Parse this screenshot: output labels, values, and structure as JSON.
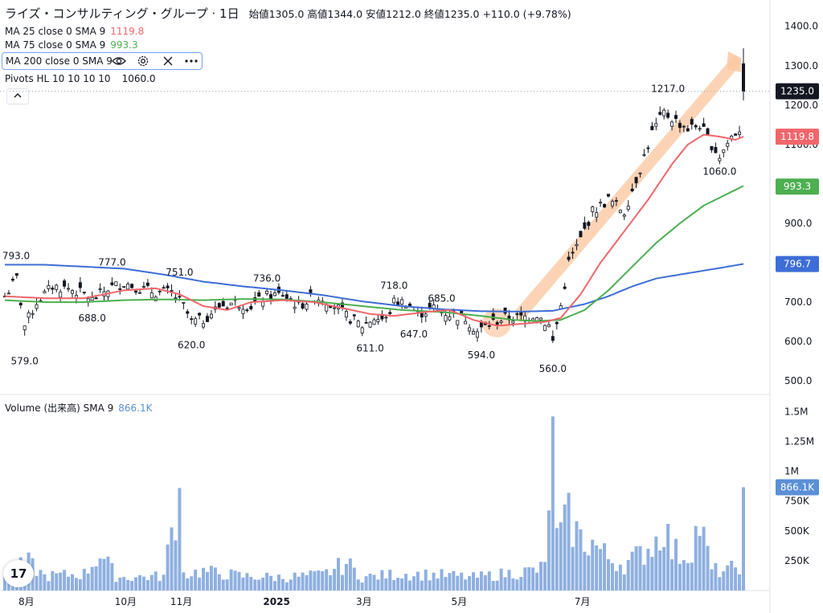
{
  "header": {
    "name": "ライズ・コンサルティング・グループ · 1日",
    "ohlc": "始値1305.0 高値1344.0 安値1212.0 終値1235.0 +110.0 (+9.78%)"
  },
  "legend": {
    "ma25": {
      "label": "MA 25 close 0 SMA 9",
      "value": "1119.8",
      "color": "#f0666b"
    },
    "ma75": {
      "label": "MA 75 close 0 SMA 9",
      "value": "993.3",
      "color": "#4caf50"
    },
    "ma200": {
      "label": "MA 200 close 0 SMA 9",
      "value": "",
      "color": "#3d6dd6"
    },
    "pivots": {
      "label": "Pivots HL 10 10 10 10",
      "value": "1060.0"
    },
    "volume": {
      "label": "Volume (出来高) SMA 9",
      "value": "866.1K",
      "color": "#5b8fd6"
    }
  },
  "icons": [
    "eye-icon",
    "gear-icon",
    "close-icon",
    "more-icon",
    "chevron-up-icon"
  ],
  "logo_text": "17",
  "chart_data": {
    "type": "candlestick",
    "price_axis": {
      "ticks": [
        "1400.0",
        "1300.0",
        "1200.0",
        "1100.0",
        "1000.0",
        "900.0",
        "800.0",
        "700.0",
        "600.0",
        "500.0"
      ],
      "ylim": [
        480,
        1430
      ]
    },
    "volume_axis": {
      "ticks": [
        "1.5M",
        "1.25M",
        "1M",
        "750K",
        "500K",
        "250K"
      ],
      "ylim": [
        0,
        1550000
      ]
    },
    "x_ticks": [
      "8月",
      "10月",
      "11月",
      "2025",
      "3月",
      "5月",
      "7月"
    ],
    "price_badges": [
      {
        "label": "1235.0",
        "value": 1235,
        "color": "#131722"
      },
      {
        "label": "1119.8",
        "value": 1119.8,
        "color": "#f0666b"
      },
      {
        "label": "993.3",
        "value": 993.3,
        "color": "#4caf50"
      },
      {
        "label": "796.7",
        "value": 796.7,
        "color": "#3d6dd6"
      },
      {
        "label": "866.1K",
        "value": 866100,
        "color": "#5b8fd6",
        "pane": "volume"
      }
    ],
    "pivot_labels": [
      {
        "text": "793.0",
        "i": 0,
        "price": 793,
        "pos": "above"
      },
      {
        "text": "579.0",
        "i": 5,
        "price": 579,
        "pos": "below"
      },
      {
        "text": "777.0",
        "i": 27,
        "price": 777,
        "pos": "above"
      },
      {
        "text": "688.0",
        "i": 22,
        "price": 688,
        "pos": "below"
      },
      {
        "text": "751.0",
        "i": 44,
        "price": 751,
        "pos": "above"
      },
      {
        "text": "620.0",
        "i": 47,
        "price": 620,
        "pos": "below"
      },
      {
        "text": "736.0",
        "i": 66,
        "price": 736,
        "pos": "above"
      },
      {
        "text": "611.0",
        "i": 92,
        "price": 611,
        "pos": "below"
      },
      {
        "text": "718.0",
        "i": 98,
        "price": 718,
        "pos": "above"
      },
      {
        "text": "647.0",
        "i": 103,
        "price": 647,
        "pos": "below"
      },
      {
        "text": "685.0",
        "i": 110,
        "price": 685,
        "pos": "above"
      },
      {
        "text": "594.0",
        "i": 120,
        "price": 594,
        "pos": "below"
      },
      {
        "text": "560.0",
        "i": 138,
        "price": 560,
        "pos": "below"
      },
      {
        "text": "1217.0",
        "i": 167,
        "price": 1217,
        "pos": "above"
      },
      {
        "text": "1060.0",
        "i": 180,
        "price": 1060,
        "pos": "below"
      }
    ],
    "anchors": {
      "close": [
        [
          0,
          715
        ],
        [
          3,
          760
        ],
        [
          5,
          640
        ],
        [
          8,
          700
        ],
        [
          12,
          740
        ],
        [
          16,
          735
        ],
        [
          20,
          720
        ],
        [
          22,
          705
        ],
        [
          26,
          735
        ],
        [
          30,
          750
        ],
        [
          34,
          735
        ],
        [
          38,
          725
        ],
        [
          42,
          725
        ],
        [
          45,
          690
        ],
        [
          47,
          650
        ],
        [
          50,
          655
        ],
        [
          54,
          690
        ],
        [
          58,
          700
        ],
        [
          62,
          690
        ],
        [
          66,
          715
        ],
        [
          70,
          720
        ],
        [
          74,
          690
        ],
        [
          78,
          715
        ],
        [
          82,
          700
        ],
        [
          86,
          665
        ],
        [
          90,
          640
        ],
        [
          93,
          660
        ],
        [
          96,
          655
        ],
        [
          98,
          700
        ],
        [
          101,
          700
        ],
        [
          104,
          670
        ],
        [
          108,
          685
        ],
        [
          112,
          670
        ],
        [
          116,
          660
        ],
        [
          119,
          625
        ],
        [
          122,
          645
        ],
        [
          126,
          660
        ],
        [
          130,
          660
        ],
        [
          134,
          670
        ],
        [
          137,
          640
        ],
        [
          138,
          600
        ],
        [
          140,
          690
        ],
        [
          142,
          800
        ],
        [
          145,
          860
        ],
        [
          148,
          930
        ],
        [
          152,
          960
        ],
        [
          156,
          930
        ],
        [
          160,
          1040
        ],
        [
          163,
          1130
        ],
        [
          166,
          1180
        ],
        [
          169,
          1160
        ],
        [
          172,
          1140
        ],
        [
          175,
          1150
        ],
        [
          178,
          1100
        ],
        [
          180,
          1070
        ],
        [
          183,
          1120
        ],
        [
          185,
          1140
        ],
        [
          186,
          1235
        ]
      ],
      "ma25": [
        [
          0,
          715
        ],
        [
          10,
          710
        ],
        [
          20,
          710
        ],
        [
          30,
          730
        ],
        [
          38,
          735
        ],
        [
          44,
          720
        ],
        [
          50,
          690
        ],
        [
          56,
          680
        ],
        [
          62,
          700
        ],
        [
          70,
          705
        ],
        [
          78,
          700
        ],
        [
          85,
          685
        ],
        [
          92,
          670
        ],
        [
          98,
          665
        ],
        [
          106,
          675
        ],
        [
          112,
          680
        ],
        [
          118,
          655
        ],
        [
          124,
          640
        ],
        [
          130,
          645
        ],
        [
          136,
          650
        ],
        [
          140,
          660
        ],
        [
          145,
          720
        ],
        [
          150,
          800
        ],
        [
          156,
          880
        ],
        [
          162,
          960
        ],
        [
          168,
          1050
        ],
        [
          172,
          1100
        ],
        [
          176,
          1125
        ],
        [
          180,
          1120
        ],
        [
          184,
          1112
        ],
        [
          186,
          1120
        ]
      ],
      "ma75": [
        [
          0,
          705
        ],
        [
          10,
          700
        ],
        [
          20,
          700
        ],
        [
          30,
          705
        ],
        [
          40,
          707
        ],
        [
          50,
          705
        ],
        [
          60,
          708
        ],
        [
          70,
          707
        ],
        [
          80,
          700
        ],
        [
          90,
          690
        ],
        [
          100,
          680
        ],
        [
          110,
          675
        ],
        [
          120,
          665
        ],
        [
          128,
          655
        ],
        [
          134,
          652
        ],
        [
          140,
          655
        ],
        [
          146,
          680
        ],
        [
          152,
          730
        ],
        [
          158,
          790
        ],
        [
          164,
          850
        ],
        [
          170,
          900
        ],
        [
          176,
          945
        ],
        [
          182,
          975
        ],
        [
          186,
          995
        ]
      ],
      "ma200": [
        [
          0,
          795
        ],
        [
          10,
          795
        ],
        [
          20,
          790
        ],
        [
          30,
          785
        ],
        [
          40,
          770
        ],
        [
          50,
          752
        ],
        [
          60,
          740
        ],
        [
          70,
          730
        ],
        [
          80,
          718
        ],
        [
          90,
          702
        ],
        [
          100,
          690
        ],
        [
          110,
          682
        ],
        [
          120,
          677
        ],
        [
          130,
          676
        ],
        [
          138,
          678
        ],
        [
          146,
          695
        ],
        [
          152,
          715
        ],
        [
          158,
          740
        ],
        [
          164,
          760
        ],
        [
          170,
          770
        ],
        [
          176,
          780
        ],
        [
          182,
          790
        ],
        [
          186,
          797
        ]
      ],
      "volume": [
        [
          0,
          170000
        ],
        [
          2,
          200000
        ],
        [
          5,
          200000
        ],
        [
          6,
          230000
        ],
        [
          10,
          120000
        ],
        [
          20,
          140000
        ],
        [
          24,
          310000
        ],
        [
          28,
          120000
        ],
        [
          30,
          110000
        ],
        [
          40,
          120000
        ],
        [
          44,
          860000
        ],
        [
          45,
          140000
        ],
        [
          50,
          160000
        ],
        [
          60,
          120000
        ],
        [
          70,
          110000
        ],
        [
          80,
          130000
        ],
        [
          86,
          230000
        ],
        [
          90,
          110000
        ],
        [
          100,
          140000
        ],
        [
          110,
          130000
        ],
        [
          118,
          110000
        ],
        [
          126,
          140000
        ],
        [
          134,
          170000
        ],
        [
          136,
          200000
        ],
        [
          138,
          1460000
        ],
        [
          139,
          420000
        ],
        [
          142,
          600000
        ],
        [
          145,
          430000
        ],
        [
          148,
          400000
        ],
        [
          152,
          270000
        ],
        [
          156,
          220000
        ],
        [
          160,
          300000
        ],
        [
          164,
          420000
        ],
        [
          166,
          560000
        ],
        [
          168,
          330000
        ],
        [
          170,
          310000
        ],
        [
          172,
          300000
        ],
        [
          175,
          560000
        ],
        [
          178,
          170000
        ],
        [
          182,
          160000
        ],
        [
          185,
          220000
        ],
        [
          186,
          866100
        ]
      ]
    }
  }
}
